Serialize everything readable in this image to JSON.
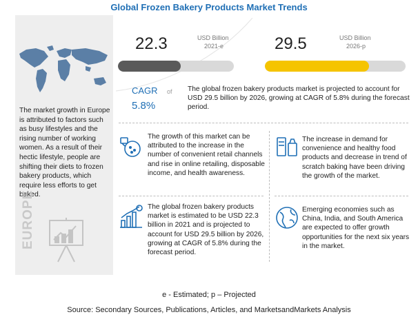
{
  "title": "Global Frozen Bakery Products Market Trends",
  "chart_data": {
    "type": "bar",
    "categories": [
      "2021-e",
      "2026-p"
    ],
    "values": [
      22.3,
      29.5
    ],
    "unit": "USD Billion",
    "cagr": "5.8%"
  },
  "market_2021": {
    "value": "22.3",
    "unit": "USD Billion",
    "year": "2021-e"
  },
  "market_2026": {
    "value": "29.5",
    "unit": "USD Billion",
    "year": "2026-p"
  },
  "cagr": {
    "label": "CAGR",
    "of": "of",
    "value": "5.8%"
  },
  "projection_text": "The global frozen bakery products market is projected to account for USD 29.5 billion by 2026, growing at CAGR of 5.8% during the forecast period.",
  "europe": {
    "text": "The market growth in Europe is attributed to factors such as busy lifestyles and the rising number of working women. As a result of their hectic lifestyle, people are shifting their diets to frozen bakery products, which require less efforts to get baked.",
    "label": "EUROPE"
  },
  "insights": [
    "The growth of this market can be attributed to the increase in the number of convenient retail channels and rise in online retailing, disposable income, and health awareness.",
    "The increase in demand for convenience and healthy food products and decrease in trend of scratch baking have been driving the growth of the market.",
    "The global frozen bakery products market is estimated to be USD 22.3 billion in 2021 and is projected to account for USD 29.5 billion by 2026, growing at CAGR of 5.8% during the forecast period.",
    "Emerging economies such as China, India, and South America are expected to offer growth opportunities for the next six years in the market."
  ],
  "colors": {
    "accent": "#1f6fb5",
    "bar_2021": "#5a5a5a",
    "bar_2026": "#f5c400",
    "track": "#d9d9d9"
  },
  "footnote": "e - Estimated; p – Projected",
  "source": "Source: Secondary Sources, Publications, Articles, and MarketsandMarkets Analysis"
}
